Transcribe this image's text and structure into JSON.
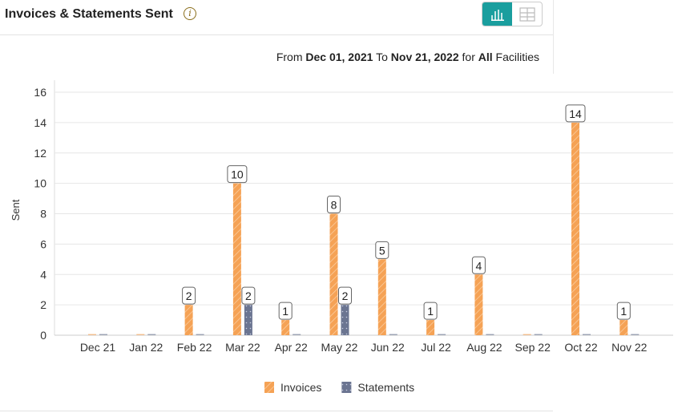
{
  "header": {
    "title": "Invoices & Statements Sent",
    "info_icon": "info-icon",
    "view_chart_icon": "bar-chart-icon",
    "view_table_icon": "table-icon",
    "accent": "#1a9e9e"
  },
  "range": {
    "from_label": "From",
    "from": "Dec 01, 2021",
    "to_label": "To",
    "to": "Nov 21, 2022",
    "for_label": "for",
    "facility": "All",
    "facility_suffix": "Facilities"
  },
  "chart_data": {
    "type": "bar",
    "title": "",
    "xlabel": "",
    "ylabel": "Sent",
    "ylim": [
      0,
      16
    ],
    "yticks": [
      "0",
      "2",
      "4",
      "6",
      "8",
      "10",
      "12",
      "14",
      "16"
    ],
    "grid": true,
    "legend": "bottom",
    "categories": [
      "Dec 21",
      "Jan 22",
      "Feb 22",
      "Mar 22",
      "Apr 22",
      "May 22",
      "Jun 22",
      "Jul 22",
      "Aug 22",
      "Sep 22",
      "Oct 22",
      "Nov 22"
    ],
    "series": [
      {
        "name": "Invoices",
        "color": "#f5a255",
        "values": [
          0,
          0,
          2,
          10,
          1,
          8,
          5,
          1,
          4,
          0,
          14,
          1
        ]
      },
      {
        "name": "Statements",
        "color": "#6b7591",
        "values": [
          0,
          0,
          0,
          2,
          0,
          2,
          0,
          0,
          0,
          0,
          0,
          0
        ]
      }
    ]
  }
}
